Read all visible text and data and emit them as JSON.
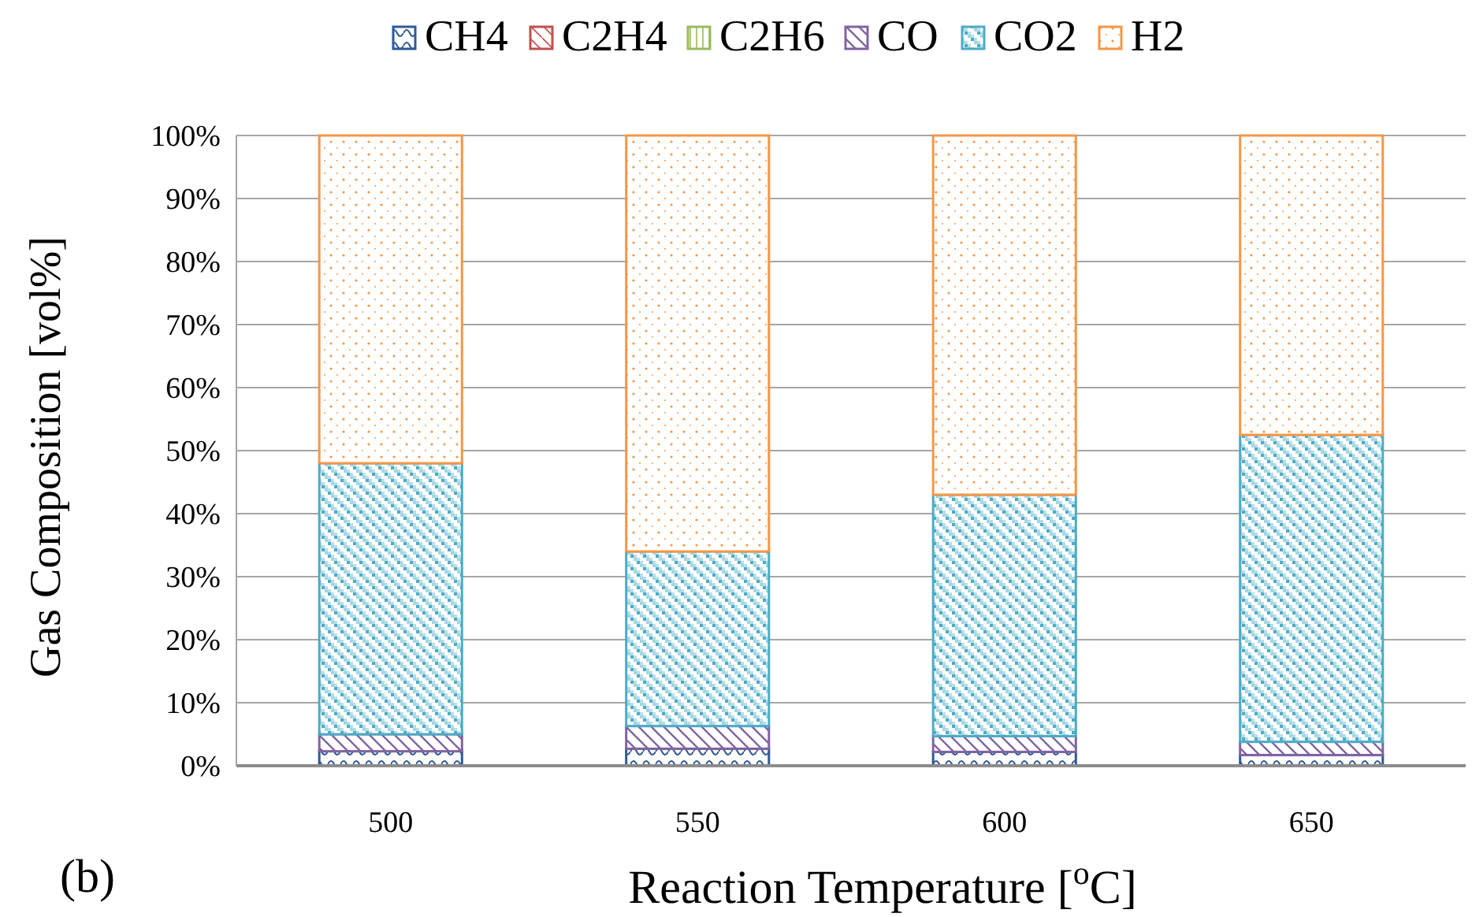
{
  "chart_data": {
    "type": "bar",
    "stacked": true,
    "categories": [
      "500",
      "550",
      "600",
      "650"
    ],
    "xlabel": "Reaction Temperature [$^{o}$C]",
    "ylabel": "Gas Composition [vol%]",
    "ylim": [
      0,
      100
    ],
    "yticks": [
      {
        "value": 0,
        "label": "0%"
      },
      {
        "value": 10,
        "label": "10%"
      },
      {
        "value": 20,
        "label": "20%"
      },
      {
        "value": 30,
        "label": "30%"
      },
      {
        "value": 40,
        "label": "40%"
      },
      {
        "value": 50,
        "label": "50%"
      },
      {
        "value": 60,
        "label": "60%"
      },
      {
        "value": 70,
        "label": "70%"
      },
      {
        "value": 80,
        "label": "80%"
      },
      {
        "value": 90,
        "label": "90%"
      },
      {
        "value": 100,
        "label": "100%"
      }
    ],
    "grid": "y",
    "legend": "top",
    "annotations": [
      "(b)"
    ],
    "series": [
      {
        "name": "CH4",
        "color": "#2e5a94",
        "values": [
          2.3,
          2.7,
          2.2,
          1.7
        ]
      },
      {
        "name": "C2H4",
        "color": "#c0504d",
        "values": [
          0,
          0,
          0,
          0
        ]
      },
      {
        "name": "C2H6",
        "color": "#9bbb59",
        "values": [
          0,
          0,
          0,
          0
        ]
      },
      {
        "name": "CO",
        "color": "#8064a2",
        "values": [
          2.7,
          3.6,
          2.5,
          2.1
        ]
      },
      {
        "name": "CO2",
        "color": "#4bacc6",
        "values": [
          43,
          27.7,
          38.3,
          48.7
        ]
      },
      {
        "name": "H2",
        "color": "#f79646",
        "values": [
          52,
          66,
          57,
          47.5
        ]
      }
    ]
  }
}
